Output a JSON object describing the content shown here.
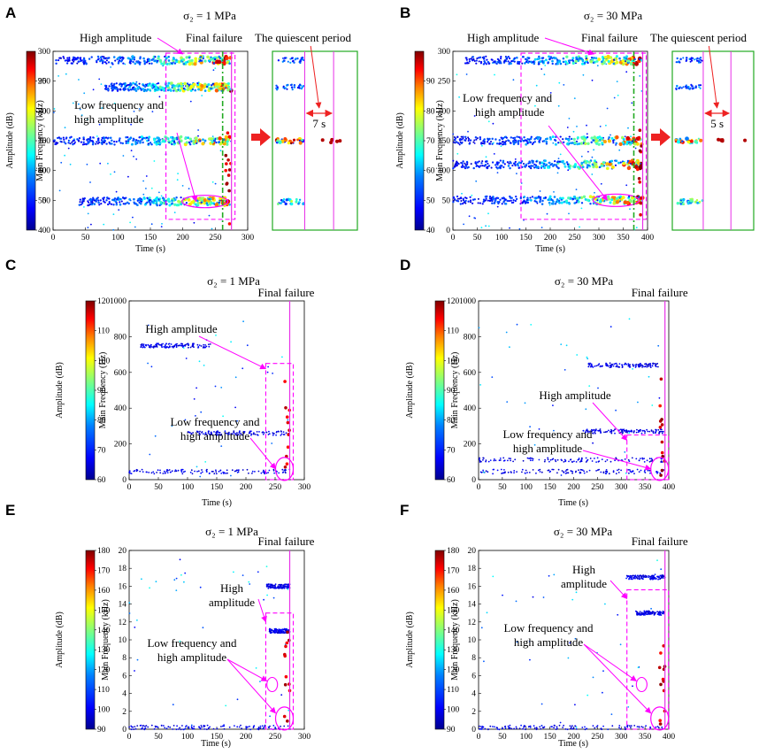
{
  "colorbar_stops": [
    "#00008f",
    "#0000ff",
    "#0080ff",
    "#00ffff",
    "#80ff80",
    "#ffff00",
    "#ff8000",
    "#ff0000",
    "#800000"
  ],
  "annotation_color": "#ff00ff",
  "failure_line_color": "#e830e8",
  "green_color": "#22aa22",
  "arrow_color": "#ee2222",
  "chart_data": [
    {
      "id": "A",
      "type": "scatter",
      "panel_label": "A",
      "title": "σ₂ = 1 MPa",
      "xlabel": "Time (s)",
      "ylabel": "Main Frequency (kHz)",
      "colorbar_label": "Amplitude (dB)",
      "xlim": [
        0,
        300
      ],
      "ylim": [
        0,
        300
      ],
      "xticks": [
        0,
        50,
        100,
        150,
        200,
        250,
        300
      ],
      "yticks": [
        0,
        50,
        100,
        150,
        200,
        250,
        300
      ],
      "colorbar_range": [
        40,
        100
      ],
      "colorbar_ticks": [
        40,
        50,
        60,
        70,
        80,
        90
      ],
      "failure_time": 275,
      "annotations": [
        "High amplitude",
        "Final failure",
        "Low frequency and",
        "high amplitude",
        "The quiescent period"
      ],
      "quiescent_period": "7 s",
      "bands": [
        {
          "y": 150,
          "x0": 0,
          "x1": 275
        },
        {
          "y": 285,
          "x0": 0,
          "x1": 275
        },
        {
          "y": 48,
          "x0": 40,
          "x1": 275
        },
        {
          "y": 240,
          "x0": 80,
          "x1": 275
        }
      ]
    },
    {
      "id": "B",
      "type": "scatter",
      "panel_label": "B",
      "title": "σ₂ = 30 MPa",
      "xlabel": "Time (s)",
      "ylabel": "Main Frequency (kHz)",
      "colorbar_label": "Amplitude (dB)",
      "xlim": [
        0,
        400
      ],
      "ylim": [
        0,
        300
      ],
      "xticks": [
        0,
        50,
        100,
        150,
        200,
        250,
        300,
        350,
        400
      ],
      "yticks": [
        0,
        50,
        100,
        150,
        200,
        250,
        300
      ],
      "colorbar_range": [
        40,
        100
      ],
      "colorbar_ticks": [
        40,
        50,
        60,
        70,
        80,
        90
      ],
      "failure_time": 390,
      "annotations": [
        "High amplitude",
        "Final failure",
        "Low frequency and",
        "high amplitude",
        "The quiescent period"
      ],
      "quiescent_period": "5 s",
      "bands": [
        {
          "y": 150,
          "x0": 0,
          "x1": 390
        },
        {
          "y": 285,
          "x0": 20,
          "x1": 390
        },
        {
          "y": 50,
          "x0": 0,
          "x1": 390
        },
        {
          "y": 110,
          "x0": 0,
          "x1": 390
        }
      ]
    },
    {
      "id": "C",
      "type": "scatter",
      "panel_label": "C",
      "title": "σ₂ = 1 MPa",
      "xlabel": "Time (s)",
      "ylabel": "Main Frequency (Hz)",
      "colorbar_label": "Amplitude (dB)",
      "xlim": [
        0,
        300
      ],
      "ylim": [
        0,
        1000
      ],
      "xticks": [
        0,
        50,
        100,
        150,
        200,
        250,
        300
      ],
      "yticks": [
        0,
        200,
        400,
        600,
        800,
        1000
      ],
      "colorbar_range": [
        60,
        120
      ],
      "colorbar_ticks": [
        60,
        70,
        80,
        90,
        100,
        110,
        120
      ],
      "failure_time": 275,
      "annotations": [
        "Final failure",
        "High amplitude",
        "Low frequency and",
        "high amplitude"
      ],
      "bands": [
        {
          "y": 750,
          "x0": 20,
          "x1": 140
        },
        {
          "y": 260,
          "x0": 100,
          "x1": 270
        },
        {
          "y": 45,
          "x0": 0,
          "x1": 275
        }
      ]
    },
    {
      "id": "D",
      "type": "scatter",
      "panel_label": "D",
      "title": "σ₂ = 30 MPa",
      "xlabel": "Time (s)",
      "ylabel": "Main Frequency (Hz)",
      "colorbar_label": "Amplitude (dB)",
      "xlim": [
        0,
        400
      ],
      "ylim": [
        0,
        1000
      ],
      "xticks": [
        0,
        50,
        100,
        150,
        200,
        250,
        300,
        350,
        400
      ],
      "yticks": [
        0,
        200,
        400,
        600,
        800,
        1000
      ],
      "colorbar_range": [
        60,
        120
      ],
      "colorbar_ticks": [
        60,
        70,
        80,
        90,
        100,
        110,
        120
      ],
      "failure_time": 392,
      "annotations": [
        "Final failure",
        "High amplitude",
        "Low frequency and",
        "high amplitude"
      ],
      "bands": [
        {
          "y": 640,
          "x0": 230,
          "x1": 380
        },
        {
          "y": 270,
          "x0": 220,
          "x1": 390
        },
        {
          "y": 110,
          "x0": 0,
          "x1": 390
        },
        {
          "y": 45,
          "x0": 0,
          "x1": 392
        }
      ]
    },
    {
      "id": "E",
      "type": "scatter",
      "panel_label": "E",
      "title": "σ₂ = 1 MPa",
      "xlabel": "Time (s)",
      "ylabel": "Main Frequency (kHz)",
      "colorbar_label": "Amplitude (dB)",
      "xlim": [
        0,
        300
      ],
      "ylim": [
        0,
        20
      ],
      "xticks": [
        0,
        50,
        100,
        150,
        200,
        250,
        300
      ],
      "yticks": [
        0,
        2,
        4,
        6,
        8,
        10,
        12,
        14,
        16,
        18,
        20
      ],
      "colorbar_range": [
        90,
        180
      ],
      "colorbar_ticks": [
        90,
        100,
        110,
        120,
        130,
        140,
        150,
        160,
        170,
        180
      ],
      "failure_time": 275,
      "annotations": [
        "Final failure",
        "High",
        "amplitude",
        "Low frequency and",
        "high amplitude"
      ],
      "bands": [
        {
          "y": 0.2,
          "x0": 0,
          "x1": 275
        },
        {
          "y": 11,
          "x0": 240,
          "x1": 275
        },
        {
          "y": 16,
          "x0": 235,
          "x1": 275
        }
      ]
    },
    {
      "id": "F",
      "type": "scatter",
      "panel_label": "F",
      "title": "σ₂ = 30 MPa",
      "xlabel": "Time (s)",
      "ylabel": "Main Frequency (kHz)",
      "colorbar_label": "Amplitude (dB)",
      "xlim": [
        0,
        400
      ],
      "ylim": [
        0,
        20
      ],
      "xticks": [
        0,
        50,
        100,
        150,
        200,
        250,
        300,
        350,
        400
      ],
      "yticks": [
        0,
        2,
        4,
        6,
        8,
        10,
        12,
        14,
        16,
        18,
        20
      ],
      "colorbar_range": [
        90,
        180
      ],
      "colorbar_ticks": [
        90,
        100,
        110,
        120,
        130,
        140,
        150,
        160,
        170,
        180
      ],
      "failure_time": 392,
      "annotations": [
        "Final failure",
        "High",
        "amplitude",
        "Low frequency and",
        "high amplitude"
      ],
      "bands": [
        {
          "y": 0.2,
          "x0": 0,
          "x1": 392
        },
        {
          "y": 13,
          "x0": 330,
          "x1": 392
        },
        {
          "y": 17,
          "x0": 310,
          "x1": 392
        }
      ]
    }
  ]
}
